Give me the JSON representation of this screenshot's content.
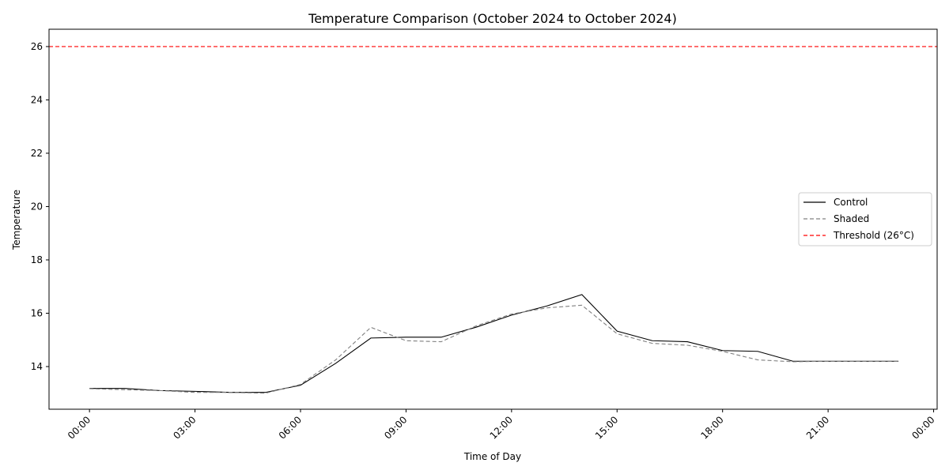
{
  "chart_data": {
    "type": "line",
    "title": "Temperature Comparison (October 2024 to October 2024)",
    "xlabel": "Time of Day",
    "ylabel": "Temperature",
    "x": [
      0,
      1,
      2,
      3,
      4,
      5,
      6,
      7,
      8,
      9,
      10,
      11,
      12,
      13,
      14,
      15,
      16,
      17,
      18,
      19,
      20,
      21,
      22,
      23
    ],
    "xlim": [
      -1.15,
      24.1
    ],
    "ylim": [
      12.4,
      26.65
    ],
    "x_ticks": [
      {
        "value": 0,
        "label": "00:00"
      },
      {
        "value": 3,
        "label": "03:00"
      },
      {
        "value": 6,
        "label": "06:00"
      },
      {
        "value": 9,
        "label": "09:00"
      },
      {
        "value": 12,
        "label": "12:00"
      },
      {
        "value": 15,
        "label": "15:00"
      },
      {
        "value": 18,
        "label": "18:00"
      },
      {
        "value": 21,
        "label": "21:00"
      },
      {
        "value": 24,
        "label": "00:00"
      }
    ],
    "y_ticks": [
      14,
      16,
      18,
      20,
      22,
      24,
      26
    ],
    "series": [
      {
        "name": "Control",
        "color": "#000000",
        "dash": "solid",
        "values": [
          13.18,
          13.18,
          13.1,
          13.07,
          13.03,
          13.03,
          13.3,
          14.12,
          15.07,
          15.1,
          15.1,
          15.48,
          15.93,
          16.27,
          16.7,
          15.33,
          14.97,
          14.93,
          14.6,
          14.57,
          14.2,
          14.2,
          14.2,
          14.2
        ]
      },
      {
        "name": "Shaded",
        "color": "#808080",
        "dash": "dashed",
        "values": [
          13.17,
          13.13,
          13.1,
          13.03,
          13.03,
          13.0,
          13.33,
          14.25,
          15.47,
          14.97,
          14.93,
          15.53,
          15.97,
          16.2,
          16.3,
          15.23,
          14.87,
          14.8,
          14.57,
          14.25,
          14.18,
          14.2,
          14.2,
          14.2
        ]
      }
    ],
    "threshold": {
      "value": 26,
      "label": "Threshold (26°C)",
      "color": "#ff0000",
      "dash": "dashed"
    },
    "legend": {
      "placement": "center-right",
      "entries": [
        {
          "label": "Control",
          "color": "#000000",
          "dash": "solid"
        },
        {
          "label": "Shaded",
          "color": "#808080",
          "dash": "dashed"
        },
        {
          "label": "Threshold (26°C)",
          "color": "#ff0000",
          "dash": "dashed"
        }
      ]
    },
    "grid": false
  }
}
